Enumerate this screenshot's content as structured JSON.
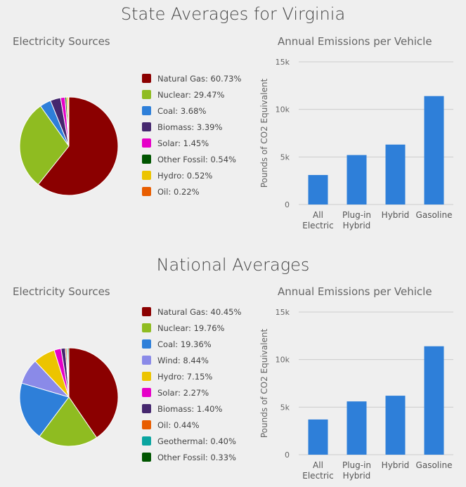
{
  "sections": [
    {
      "title": "State Averages for Virginia",
      "sources_title": "Electricity Sources",
      "emissions_title": "Annual Emissions per Vehicle"
    },
    {
      "title": "National Averages",
      "sources_title": "Electricity Sources",
      "emissions_title": "Annual Emissions per Vehicle"
    }
  ],
  "chart_data": [
    {
      "type": "pie",
      "title": "Electricity Sources (Virginia)",
      "slices": [
        {
          "label": "Natural Gas",
          "value": 60.73,
          "text": "60.73%",
          "color": "#8b0000"
        },
        {
          "label": "Nuclear",
          "value": 29.47,
          "text": "29.47%",
          "color": "#8fbc21"
        },
        {
          "label": "Coal",
          "value": 3.68,
          "text": "3.68%",
          "color": "#2e7fd9"
        },
        {
          "label": "Biomass",
          "value": 3.39,
          "text": "3.39%",
          "color": "#45276e"
        },
        {
          "label": "Solar",
          "value": 1.45,
          "text": "1.45%",
          "color": "#e600c8"
        },
        {
          "label": "Other Fossil",
          "value": 0.54,
          "text": "0.54%",
          "color": "#005500"
        },
        {
          "label": "Hydro",
          "value": 0.52,
          "text": "0.52%",
          "color": "#ecc400"
        },
        {
          "label": "Oil",
          "value": 0.22,
          "text": "0.22%",
          "color": "#e85d00"
        }
      ]
    },
    {
      "type": "bar",
      "title": "Annual Emissions per Vehicle (Virginia)",
      "ylabel": "Pounds of CO2 Equivalent",
      "ylim": [
        0,
        15000
      ],
      "yticks": [
        "0",
        "5k",
        "10k",
        "15k"
      ],
      "categories": [
        [
          "All",
          "Electric"
        ],
        [
          "Plug-in",
          "Hybrid"
        ],
        [
          "Hybrid"
        ],
        [
          "Gasoline"
        ]
      ],
      "values": [
        3100,
        5200,
        6300,
        11400
      ],
      "color": "#2e7fd9"
    },
    {
      "type": "pie",
      "title": "Electricity Sources (National)",
      "slices": [
        {
          "label": "Natural Gas",
          "value": 40.45,
          "text": "40.45%",
          "color": "#8b0000"
        },
        {
          "label": "Nuclear",
          "value": 19.76,
          "text": "19.76%",
          "color": "#8fbc21"
        },
        {
          "label": "Coal",
          "value": 19.36,
          "text": "19.36%",
          "color": "#2e7fd9"
        },
        {
          "label": "Wind",
          "value": 8.44,
          "text": "8.44%",
          "color": "#8a8ae8"
        },
        {
          "label": "Hydro",
          "value": 7.15,
          "text": "7.15%",
          "color": "#ecc400"
        },
        {
          "label": "Solar",
          "value": 2.27,
          "text": "2.27%",
          "color": "#e600c8"
        },
        {
          "label": "Biomass",
          "value": 1.4,
          "text": "1.40%",
          "color": "#45276e"
        },
        {
          "label": "Oil",
          "value": 0.44,
          "text": "0.44%",
          "color": "#e85d00"
        },
        {
          "label": "Geothermal",
          "value": 0.4,
          "text": "0.40%",
          "color": "#0aa5a0"
        },
        {
          "label": "Other Fossil",
          "value": 0.33,
          "text": "0.33%",
          "color": "#005500"
        }
      ]
    },
    {
      "type": "bar",
      "title": "Annual Emissions per Vehicle (National)",
      "ylabel": "Pounds of CO2 Equivalent",
      "ylim": [
        0,
        15000
      ],
      "yticks": [
        "0",
        "5k",
        "10k",
        "15k"
      ],
      "categories": [
        [
          "All",
          "Electric"
        ],
        [
          "Plug-in",
          "Hybrid"
        ],
        [
          "Hybrid"
        ],
        [
          "Gasoline"
        ]
      ],
      "values": [
        3700,
        5600,
        6200,
        11400
      ],
      "color": "#2e7fd9"
    }
  ]
}
